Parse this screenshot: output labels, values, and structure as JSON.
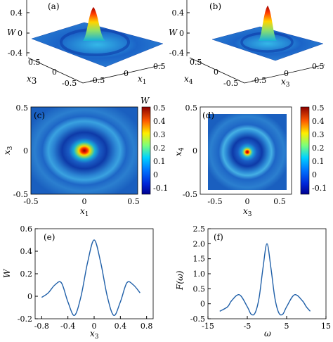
{
  "panels": {
    "a": {
      "tag": "(a)",
      "zlabel": "W",
      "x1label": "x",
      "x1sub": "3",
      "x2label": "x",
      "x2sub": "1",
      "zticks": [
        "0.4",
        "0",
        "-0.4"
      ],
      "xticksA": [
        "0.5",
        "0",
        "-0.5"
      ],
      "xticksB": [
        "-0.5",
        "0",
        "0.5"
      ]
    },
    "b": {
      "tag": "(b)",
      "zlabel": "W",
      "x1label": "x",
      "x1sub": "4",
      "x2label": "x",
      "x2sub": "3",
      "zticks": [
        "0.4",
        "0",
        "-0.4"
      ],
      "xticksA": [
        "0.5",
        "0",
        "-0.5"
      ],
      "xticksB": [
        "-0.5",
        "0",
        "0.5"
      ]
    },
    "c": {
      "tag": "(c)",
      "xlabel": "x",
      "xsub": "1",
      "ylabel": "x",
      "ysub": "3",
      "cbar_label": "W",
      "xticks": [
        "-0.5",
        "0",
        "0.5"
      ],
      "yticks": [
        "0.5",
        "0",
        "-0.5"
      ],
      "cbar_ticks": [
        "0.5",
        "0.4",
        "0.3",
        "0.2",
        "0.1",
        "0",
        "-0.1"
      ]
    },
    "d": {
      "tag": "(d)",
      "xlabel": "x",
      "xsub": "3",
      "ylabel": "x",
      "ysub": "4",
      "xticks": [
        "-0.5",
        "0",
        "0.5"
      ],
      "yticks": [
        "0.5",
        "0",
        "-0.5"
      ],
      "cbar_ticks": [
        "0.5",
        "0.4",
        "0.3",
        "0.2",
        "0.1",
        "0",
        "-0.1"
      ]
    },
    "e": {
      "tag": "(e)",
      "xlabel": "x",
      "xsub": "3",
      "ylabel": "W",
      "xticks": [
        "-0.8",
        "-0.4",
        "0",
        "0.4",
        "0.8"
      ],
      "yticks": [
        "0.6",
        "0.4",
        "0.2",
        "0",
        "-0.2"
      ]
    },
    "f": {
      "tag": "(f)",
      "xlabel": "ω",
      "ylabel": "F(ω)",
      "xticks": [
        "-15",
        "-5",
        "5",
        "15"
      ],
      "yticks": [
        "2.5",
        "2.0",
        "1.5",
        "1.0",
        "0.5",
        "0",
        "-0.5"
      ]
    }
  },
  "colors": {
    "line": "#1f5fa8",
    "heat_low": "#0a2a8c",
    "heat_high": "#8b0000"
  },
  "chart_data": [
    {
      "type": "surface",
      "panel": "a",
      "zlim": [
        -0.4,
        0.4
      ],
      "xlim": [
        -0.5,
        0.5
      ],
      "ylim": [
        -0.5,
        0.5
      ]
    },
    {
      "type": "surface",
      "panel": "b",
      "zlim": [
        -0.4,
        0.4
      ],
      "xlim": [
        -0.5,
        0.5
      ],
      "ylim": [
        -0.5,
        0.5
      ]
    },
    {
      "type": "heatmap",
      "panel": "c",
      "xlim": [
        -0.5,
        0.5
      ],
      "ylim": [
        -0.5,
        0.5
      ],
      "clim": [
        -0.15,
        0.5
      ]
    },
    {
      "type": "heatmap",
      "panel": "d",
      "xlim": [
        -0.7,
        0.7
      ],
      "ylim": [
        -0.6,
        0.6
      ],
      "clim": [
        -0.15,
        0.5
      ]
    },
    {
      "type": "line",
      "panel": "e",
      "xlim": [
        -0.9,
        0.9
      ],
      "ylim": [
        -0.2,
        0.6
      ],
      "x": [
        -0.8,
        -0.7,
        -0.6,
        -0.5,
        -0.4,
        -0.3,
        -0.2,
        -0.1,
        0,
        0.1,
        0.2,
        0.3,
        0.4,
        0.5,
        0.6,
        0.7
      ],
      "y": [
        -0.01,
        0.03,
        0.1,
        0.12,
        -0.05,
        -0.17,
        0.0,
        0.3,
        0.5,
        0.3,
        0.0,
        -0.17,
        -0.05,
        0.12,
        0.1,
        0.03
      ]
    },
    {
      "type": "line",
      "panel": "f",
      "xlim": [
        -15,
        15
      ],
      "ylim": [
        -0.5,
        2.5
      ],
      "x": [
        -12,
        -10,
        -9,
        -7,
        -5,
        -4,
        -3,
        -2,
        -1,
        0,
        1,
        2,
        3,
        4,
        5,
        7,
        9,
        10,
        11
      ],
      "y": [
        -0.25,
        -0.1,
        0.1,
        0.3,
        -0.1,
        -0.35,
        -0.3,
        0.2,
        1.2,
        2.0,
        1.2,
        0.2,
        -0.3,
        -0.35,
        -0.1,
        0.3,
        0.1,
        -0.1,
        -0.25
      ]
    }
  ]
}
